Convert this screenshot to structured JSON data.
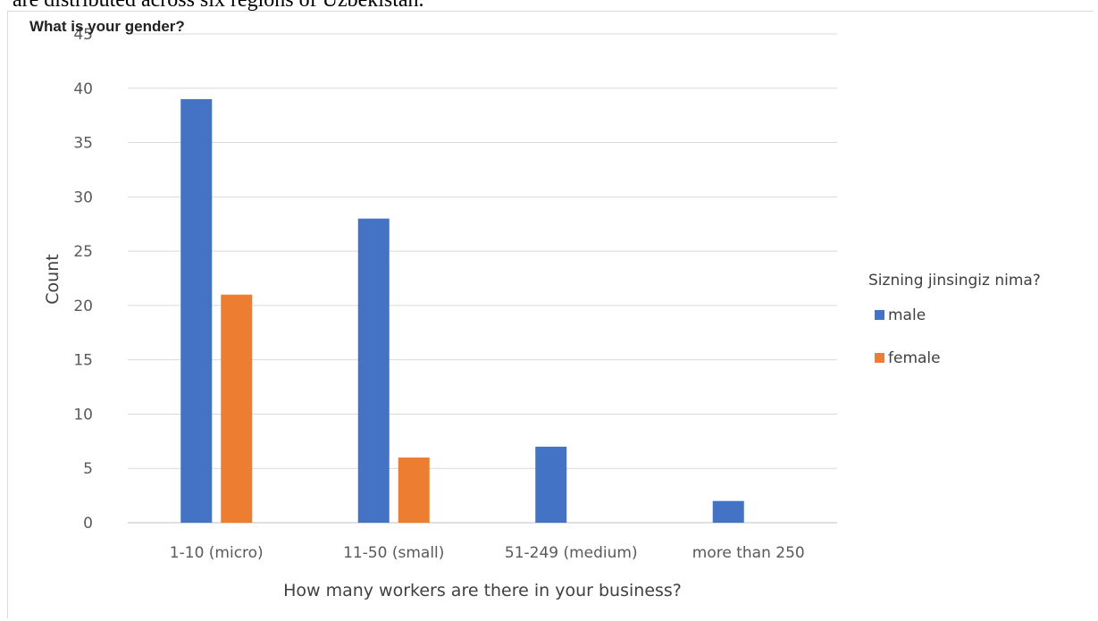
{
  "document": {
    "header_text": "are distributed across six regions of Uzbekistan.",
    "overlay_title": "What is your gender?"
  },
  "chart_data": {
    "type": "bar",
    "title": "What is your gender?",
    "categories": [
      "1-10 (micro)",
      "11-50 (small)",
      "51-249 (medium)",
      "more than 250"
    ],
    "series": [
      {
        "name": "male",
        "values": [
          39,
          28,
          7,
          2
        ],
        "color": "#4472c4"
      },
      {
        "name": "female",
        "values": [
          21,
          6,
          0,
          0
        ],
        "color": "#ed7d31"
      }
    ],
    "xlabel": "How many workers are there in your business?",
    "ylabel": "Count",
    "ylim": [
      0,
      45
    ],
    "yticks": [
      0,
      5,
      10,
      15,
      20,
      25,
      30,
      35,
      40,
      45
    ],
    "grid": true,
    "legend": {
      "title": "Sizning jinsingiz nima?",
      "position": "right"
    }
  }
}
